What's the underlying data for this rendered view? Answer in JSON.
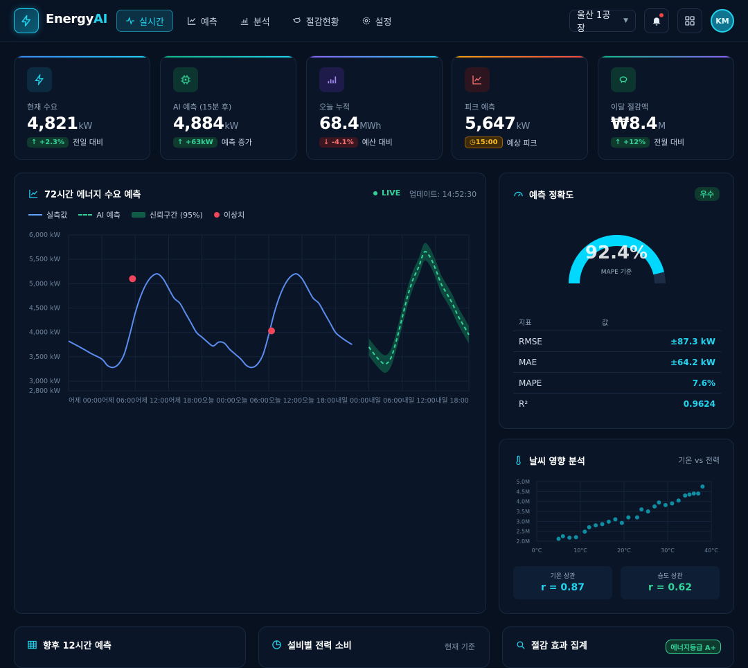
{
  "app": {
    "brand_main": "Energy",
    "brand_accent": "AI"
  },
  "nav": [
    {
      "label": "실시간",
      "icon": "pulse-icon",
      "active": true
    },
    {
      "label": "예측",
      "icon": "trend-icon"
    },
    {
      "label": "분석",
      "icon": "bar-chart-icon"
    },
    {
      "label": "절감현황",
      "icon": "piggy-bank-icon"
    },
    {
      "label": "설정",
      "icon": "gear-icon"
    }
  ],
  "site_select": {
    "value": "울산 1공장"
  },
  "user": {
    "initials": "KM"
  },
  "kpis": [
    {
      "label": "현재 수요",
      "value": "4,821",
      "unit": "kW",
      "change": "↑ +2.3%",
      "change_type": "up",
      "note": "전일 대비",
      "accent": "#3b82f6",
      "icon": "bolt-icon"
    },
    {
      "label": "AI 예측 (15분 후)",
      "value": "4,884",
      "unit": "kW",
      "change": "↑ +63kW",
      "change_type": "up",
      "note": "예측 증가",
      "accent": "#10b981",
      "icon": "chip-icon"
    },
    {
      "label": "오늘 누적",
      "value": "68.4",
      "unit": "MWh",
      "change": "↓ -4.1%",
      "change_type": "down",
      "note": "예산 대비",
      "accent": "#8b5cf6",
      "icon": "bar-chart-icon"
    },
    {
      "label": "피크 예측",
      "value": "5,647",
      "unit": "kW",
      "change": "15:00",
      "change_type": "warn",
      "note": "예상 피크",
      "accent": "#ef4444",
      "icon": "trend-icon"
    },
    {
      "label": "이달 절감액",
      "value": "₩8.4",
      "unit": "M",
      "change": "↑ +12%",
      "change_type": "up",
      "note": "전월 대비",
      "accent": "#10b981",
      "icon": "piggy-bank-icon"
    }
  ],
  "forecast_panel": {
    "title": "72시간 에너지 수요 예측",
    "live": "LIVE",
    "updated": "업데이트: 14:52:30",
    "legend": [
      "실측값",
      "AI 예측",
      "신뢰구간 (95%)",
      "이상치"
    ]
  },
  "chart_data": [
    {
      "type": "line",
      "title": "72시간 에너지 수요 예측",
      "y_ticks": [
        "6,000 kW",
        "5,500 kW",
        "5,000 kW",
        "4,500 kW",
        "4,000 kW",
        "3,500 kW",
        "3,000 kW",
        "2,800 kW"
      ],
      "y_tick_values": [
        6000,
        5500,
        5000,
        4500,
        4000,
        3500,
        3000,
        2800
      ],
      "x_ticks": [
        "어제 00:00",
        "어제 06:00",
        "어제 12:00",
        "어제 18:00",
        "오늘 00:00",
        "오늘 06:00",
        "오늘 12:00",
        "오늘 18:00",
        "내일 00:00",
        "내일 06:00",
        "내일 12:00",
        "내일 18:00"
      ],
      "ylim": [
        2800,
        6000
      ],
      "xlim": [
        0,
        72
      ],
      "series": [
        {
          "name": "실측값",
          "x": [
            0,
            2,
            4,
            6,
            7,
            8,
            9,
            10,
            11,
            12,
            13,
            14,
            15,
            16,
            17,
            18,
            19,
            20,
            21,
            22,
            23,
            24,
            25,
            26,
            27,
            28,
            29,
            30,
            31,
            32,
            33,
            34,
            35,
            36,
            37,
            38,
            39,
            40,
            41,
            42,
            43,
            44,
            45,
            46,
            47,
            48,
            49,
            50,
            51,
            52,
            53
          ],
          "y": [
            3820,
            3700,
            3570,
            3450,
            3320,
            3280,
            3350,
            3550,
            3950,
            4400,
            4750,
            5000,
            5150,
            5200,
            5100,
            4900,
            4700,
            4600,
            4400,
            4200,
            4000,
            3900,
            3800,
            3720,
            3800,
            3780,
            3650,
            3550,
            3450,
            3320,
            3280,
            3350,
            3550,
            3950,
            4400,
            4750,
            5000,
            5150,
            5200,
            5100,
            4900,
            4700,
            4600,
            4400,
            4200,
            4000,
            3900,
            3820,
            3750,
            null,
            null
          ]
        },
        {
          "name": "AI 예측",
          "x": [
            54,
            55,
            56,
            57,
            58,
            59,
            60,
            61,
            62,
            63,
            64,
            65,
            66,
            67,
            68,
            69,
            70,
            71,
            72
          ],
          "y": [
            3700,
            3550,
            3420,
            3350,
            3480,
            3850,
            4300,
            4750,
            5100,
            5350,
            5650,
            5550,
            5300,
            5000,
            4800,
            4600,
            4350,
            4150,
            3950
          ]
        },
        {
          "name": "신뢰구간 (95%)",
          "x": [
            54,
            55,
            56,
            57,
            58,
            59,
            60,
            61,
            62,
            63,
            64,
            65,
            66,
            67,
            68,
            69,
            70,
            71,
            72
          ],
          "upper": [
            3880,
            3730,
            3600,
            3530,
            3660,
            4030,
            4480,
            4930,
            5280,
            5530,
            5830,
            5730,
            5480,
            5180,
            4980,
            4780,
            4530,
            4330,
            4130
          ],
          "lower": [
            3520,
            3370,
            3240,
            3170,
            3300,
            3670,
            4120,
            4570,
            4920,
            5170,
            5470,
            5370,
            5120,
            4820,
            4620,
            4420,
            4170,
            3970,
            3770
          ]
        },
        {
          "name": "이상치",
          "x": [
            11.5,
            36.5
          ],
          "y": [
            5100,
            4030
          ]
        }
      ]
    },
    {
      "type": "scatter",
      "title": "날씨 영향 분석",
      "x_ticks": [
        "0°C",
        "10°C",
        "20°C",
        "30°C",
        "40°C"
      ],
      "y_ticks": [
        "5.0M",
        "4.5M",
        "4.0M",
        "3.5M",
        "3.0M",
        "2.5M",
        "2.0M"
      ],
      "xlim": [
        0,
        40
      ],
      "ylim": [
        2.0,
        5.0
      ],
      "x": [
        5,
        6,
        7.5,
        9,
        11,
        12,
        13.5,
        15,
        16.5,
        18,
        19.5,
        21,
        23,
        24,
        25.5,
        27,
        28,
        29.5,
        31,
        32.5,
        34,
        35,
        36,
        37,
        38
      ],
      "y": [
        2.12,
        2.25,
        2.18,
        2.2,
        2.48,
        2.7,
        2.8,
        2.86,
        2.98,
        3.1,
        2.92,
        3.2,
        3.2,
        3.6,
        3.5,
        3.75,
        3.95,
        3.82,
        3.9,
        4.05,
        4.3,
        4.35,
        4.4,
        4.4,
        4.75
      ]
    }
  ],
  "accuracy": {
    "title": "예측 정확도",
    "badge": "우수",
    "gauge_value": "92.4%",
    "gauge_fraction": 0.924,
    "gauge_sub": "MAPE 기준",
    "table_headers": [
      "지표",
      "값"
    ],
    "rows": [
      {
        "k": "RMSE",
        "v": "±87.3 kW"
      },
      {
        "k": "MAE",
        "v": "±64.2 kW"
      },
      {
        "k": "MAPE",
        "v": "7.6%"
      },
      {
        "k": "R²",
        "v": "0.9624"
      }
    ]
  },
  "weather": {
    "title": "날씨 영향 분석",
    "subtitle": "기온 vs 전력",
    "temp_corr_label": "기온 상관",
    "temp_corr_value": "r = 0.87",
    "hum_corr_label": "습도 상관",
    "hum_corr_value": "r = 0.62"
  },
  "bottom": {
    "p1_title": "향후 12시간 예측",
    "p2_title": "설비별 전력 소비",
    "p2_sub": "현재 기준",
    "p3_title": "절감 효과 집계",
    "p3_badge": "에너지등급 A+"
  },
  "colors": {
    "accent": "#22d3ee",
    "actual": "#60a5fa",
    "forecast": "#34d399",
    "band": "#0f5b45",
    "anomaly": "#f0455a"
  }
}
